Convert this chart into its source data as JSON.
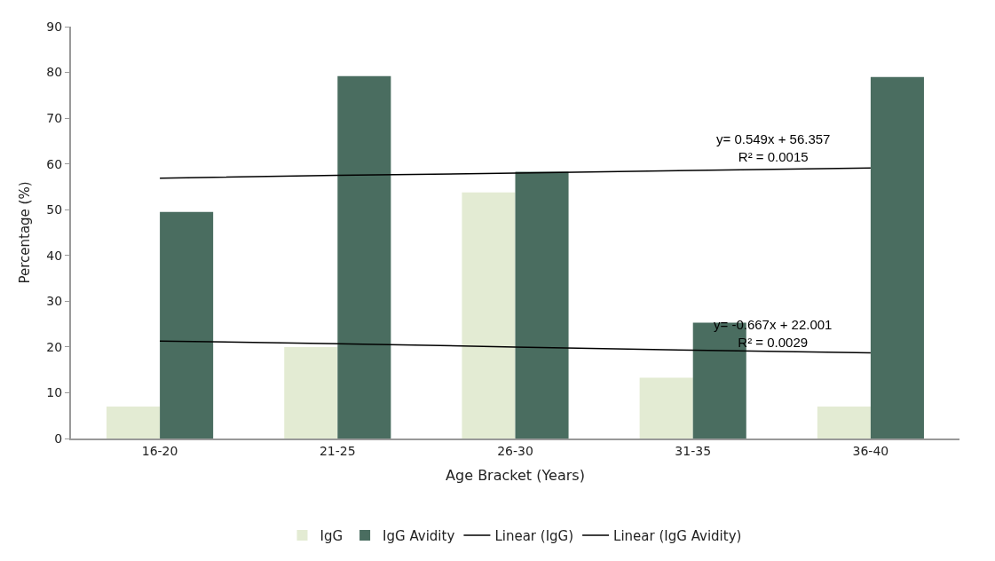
{
  "chart_data": {
    "type": "bar",
    "xlabel": "Age Bracket (Years)",
    "ylabel": "Percentage (%)",
    "categories": [
      "16-20",
      "21-25",
      "26-30",
      "31-35",
      "36-40"
    ],
    "series": [
      {
        "name": "IgG",
        "color": "#e3ebd3",
        "values": [
          7,
          20,
          53.8,
          13.3,
          7
        ]
      },
      {
        "name": "IgG Avidity",
        "color": "#4a6d60",
        "values": [
          49.5,
          79.2,
          58.3,
          25.3,
          79
        ]
      },
      {
        "name": "Linear (IgG)",
        "type": "line",
        "color": "#000000",
        "values": [
          21.3,
          20.7,
          20.0,
          19.3,
          18.7
        ]
      },
      {
        "name": "Linear (IgG Avidity)",
        "type": "line",
        "color": "#000000",
        "values": [
          56.9,
          57.5,
          58.0,
          58.6,
          59.1
        ]
      }
    ],
    "annotations": [
      "y= -0.667x + 22.001\nR² = 0.0029",
      "y= 0.549x + 56.357\nR² = 0.0015"
    ],
    "ylim": [
      0,
      90
    ],
    "yticks": [
      0,
      10,
      20,
      30,
      40,
      50,
      60,
      70,
      80,
      90
    ],
    "legend": "bottom",
    "marker": "none"
  }
}
